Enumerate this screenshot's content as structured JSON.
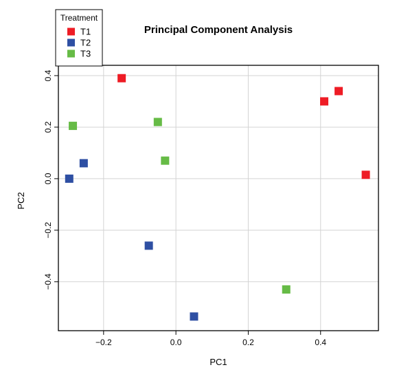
{
  "chart_data": {
    "type": "scatter",
    "title": "Principal Component Analysis",
    "xlabel": "PC1",
    "ylabel": "PC2",
    "xlim": [
      -0.325,
      0.56
    ],
    "ylim": [
      -0.59,
      0.44
    ],
    "xticks": [
      -0.2,
      0.0,
      0.2,
      0.4
    ],
    "xtick_labels": [
      "−0.2",
      "0.0",
      "0.2",
      "0.4"
    ],
    "yticks": [
      -0.4,
      -0.2,
      0.0,
      0.2,
      0.4
    ],
    "ytick_labels": [
      "−0.4",
      "−0.2",
      "0.0",
      "0.2",
      "0.4"
    ],
    "grid": true,
    "marker": "square",
    "legend": {
      "title": "Treatment",
      "placement": "top-left, outside plot area"
    },
    "series": [
      {
        "name": "T1",
        "color": "#ee1c25",
        "points": [
          {
            "x": -0.15,
            "y": 0.39
          },
          {
            "x": 0.41,
            "y": 0.3
          },
          {
            "x": 0.45,
            "y": 0.34
          },
          {
            "x": 0.525,
            "y": 0.015
          }
        ]
      },
      {
        "name": "T2",
        "color": "#2e4fa3",
        "points": [
          {
            "x": -0.255,
            "y": 0.06
          },
          {
            "x": -0.295,
            "y": 0.0
          },
          {
            "x": -0.075,
            "y": -0.26
          },
          {
            "x": 0.05,
            "y": -0.535
          }
        ]
      },
      {
        "name": "T3",
        "color": "#66bb46",
        "points": [
          {
            "x": -0.285,
            "y": 0.205
          },
          {
            "x": -0.05,
            "y": 0.22
          },
          {
            "x": -0.03,
            "y": 0.07
          },
          {
            "x": 0.305,
            "y": -0.43
          }
        ]
      }
    ]
  }
}
